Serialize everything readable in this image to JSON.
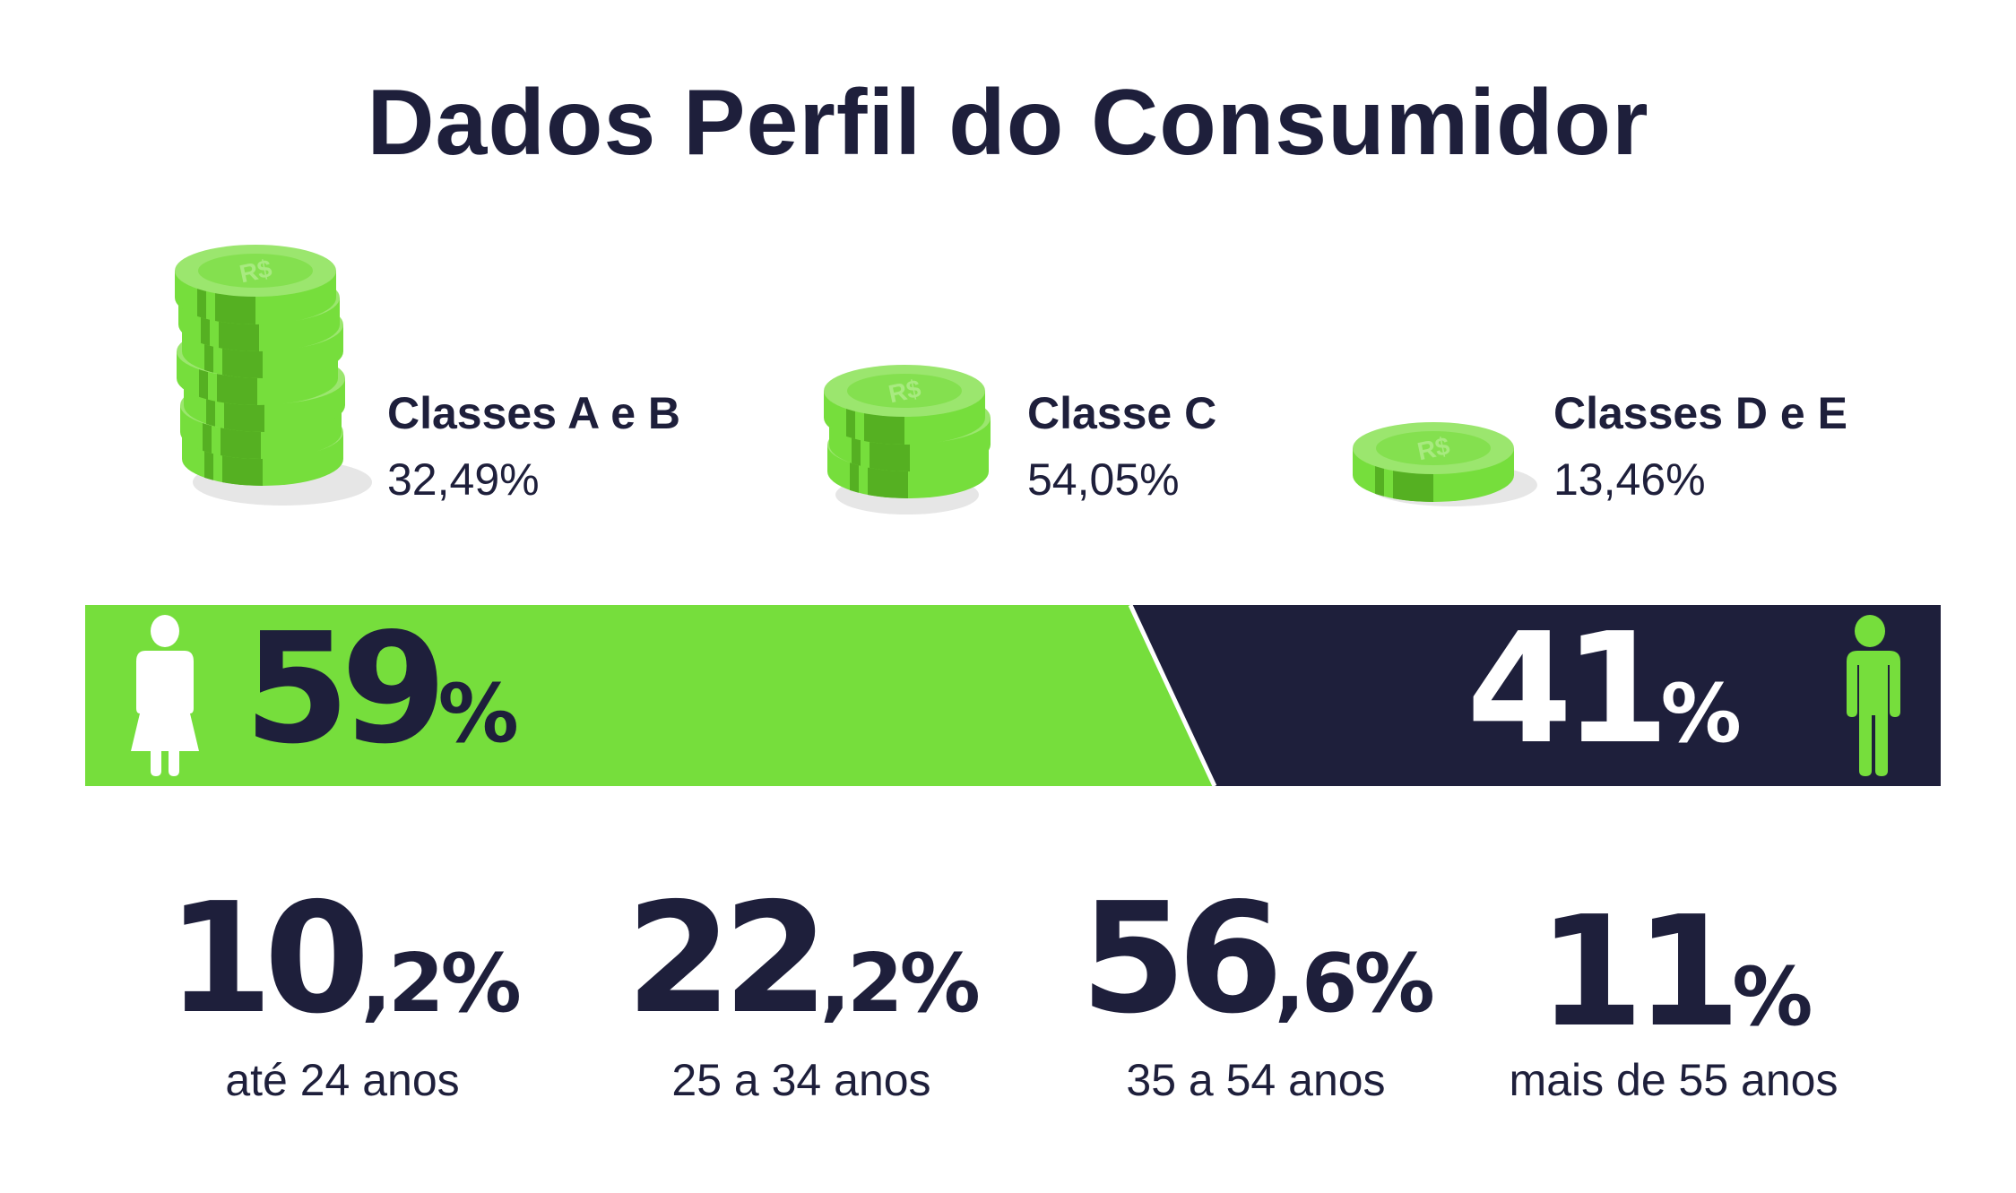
{
  "title": "Dados Perfil do Consumidor",
  "colors": {
    "navy": "#1e1f3b",
    "green": "#76de3c",
    "coin_light": "#9be66e",
    "coin_dark": "#55b022"
  },
  "classes": [
    {
      "name": "Classes A e B",
      "percent": "32,49%",
      "icon": "coin-stack-icon"
    },
    {
      "name": "Classe C",
      "percent": "54,05%",
      "icon": "coin-stack-icon"
    },
    {
      "name": "Classes D e E",
      "percent": "13,46%",
      "icon": "coin-icon"
    }
  ],
  "coin_symbol": "R$",
  "gender": {
    "female": {
      "value": "59",
      "unit": "%",
      "icon": "woman-icon",
      "share": 59
    },
    "male": {
      "value": "41",
      "unit": "%",
      "icon": "man-icon",
      "share": 41
    }
  },
  "ages": [
    {
      "value": "10",
      "decimal": ",2%",
      "label": "até 24 anos"
    },
    {
      "value": "22",
      "decimal": ",2%",
      "label": "25 a 34 anos"
    },
    {
      "value": "56",
      "decimal": ",6%",
      "label": "35 a 54 anos"
    },
    {
      "value": "11",
      "decimal": "%",
      "label": "mais de 55 anos"
    }
  ]
}
